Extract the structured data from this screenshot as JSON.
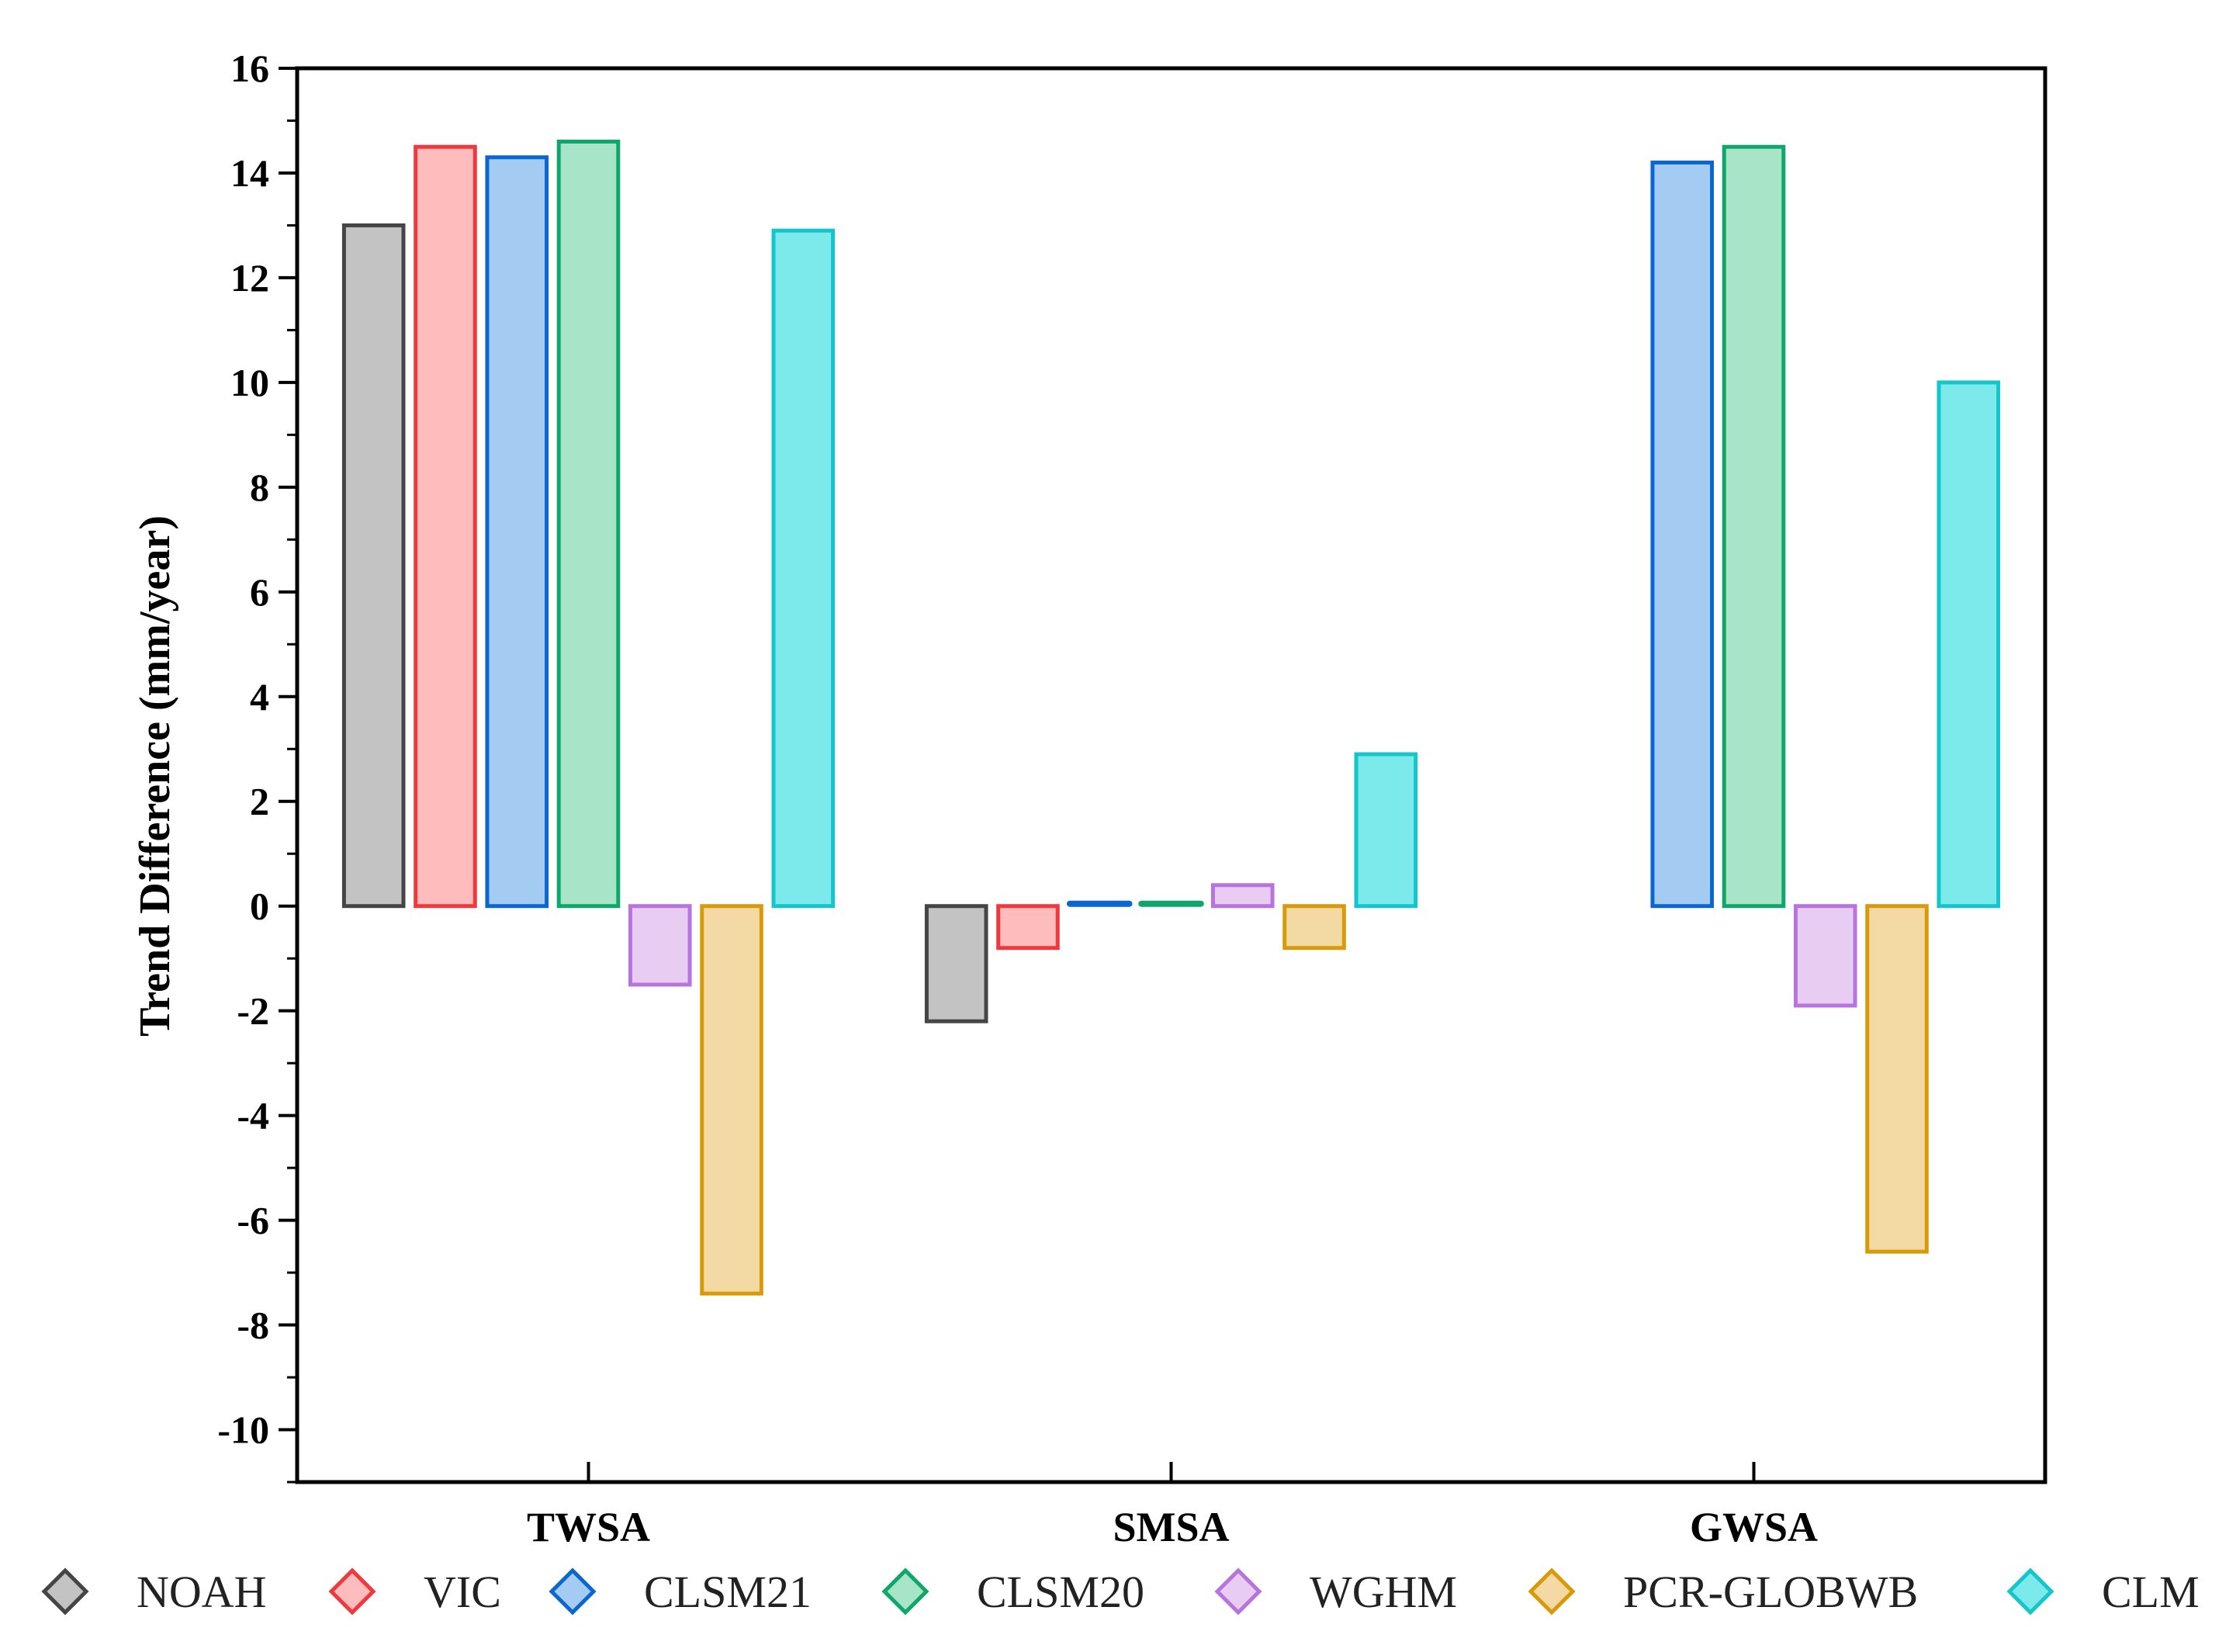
{
  "chart_data": {
    "type": "bar",
    "title": "",
    "xlabel": "",
    "ylabel": "Trend Difference (mm/year)",
    "ylim": [
      -11,
      16
    ],
    "yticks": [
      16,
      14,
      12,
      10,
      8,
      6,
      4,
      2,
      0,
      -2,
      -4,
      -6,
      -8,
      -10
    ],
    "categories": [
      "TWSA",
      "SMSA",
      "GWSA"
    ],
    "series": [
      {
        "name": "NOAH",
        "values": [
          13.0,
          -2.2,
          null
        ],
        "fill": "#c3c3c3",
        "stroke": "#454545"
      },
      {
        "name": "VIC",
        "values": [
          14.5,
          -0.8,
          null
        ],
        "fill": "#ffbcbc",
        "stroke": "#f1383f"
      },
      {
        "name": "CLSM21",
        "values": [
          14.3,
          0.05,
          14.2
        ],
        "fill": "#a4ccf2",
        "stroke": "#0a67d2"
      },
      {
        "name": "CLSM20",
        "values": [
          14.6,
          0.05,
          14.5
        ],
        "fill": "#a8e4c8",
        "stroke": "#0fa66b"
      },
      {
        "name": "WGHM",
        "values": [
          -1.5,
          0.4,
          -1.9
        ],
        "fill": "#e8ccf2",
        "stroke": "#b774df"
      },
      {
        "name": "PCR-GLOBWB",
        "values": [
          -7.4,
          -0.8,
          -6.6
        ],
        "fill": "#f3d9a4",
        "stroke": "#d99a09"
      },
      {
        "name": "CLM",
        "values": [
          12.9,
          2.9,
          10.0
        ],
        "fill": "#7ceaea",
        "stroke": "#14c6cc"
      }
    ],
    "legend": "bottom"
  }
}
